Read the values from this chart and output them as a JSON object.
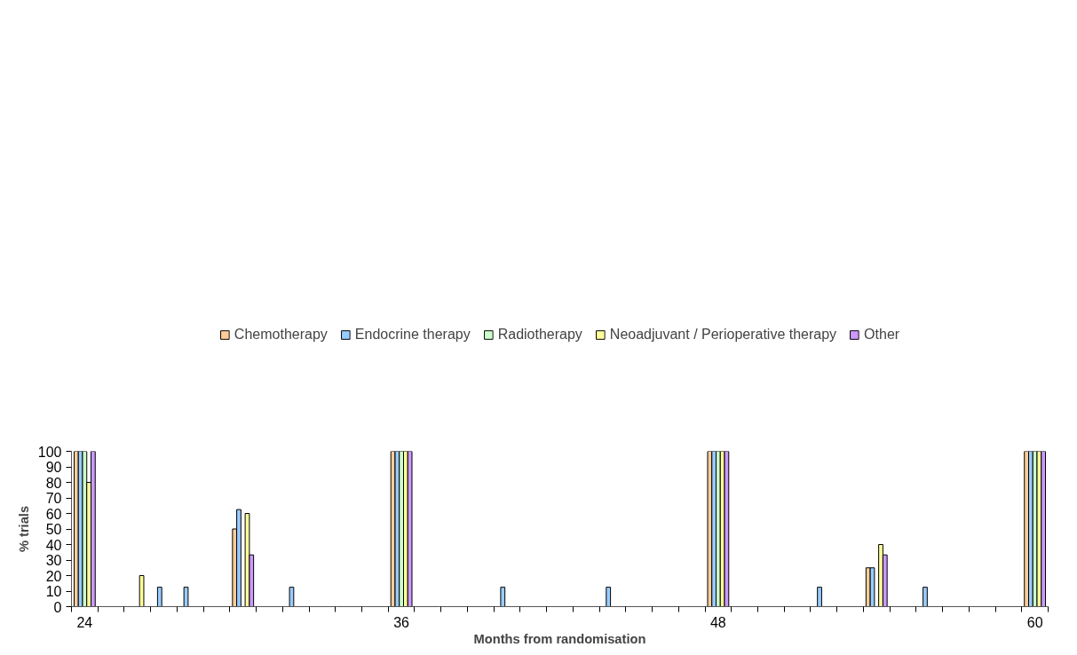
{
  "chart_data": {
    "type": "bar",
    "xlabel": "Months from randomisation",
    "ylabel": "% trials",
    "categories": [
      "24",
      null,
      null,
      null,
      null,
      null,
      null,
      null,
      null,
      null,
      null,
      null,
      "36",
      null,
      null,
      null,
      null,
      null,
      null,
      null,
      null,
      null,
      null,
      null,
      "48",
      null,
      null,
      null,
      null,
      null,
      null,
      null,
      null,
      null,
      null,
      null,
      "60"
    ],
    "series": [
      {
        "name": "Chemotherapy",
        "color": "#ffcc99",
        "values": [
          100,
          null,
          null,
          null,
          null,
          null,
          50,
          null,
          null,
          null,
          null,
          null,
          100,
          null,
          null,
          null,
          null,
          null,
          null,
          null,
          null,
          null,
          null,
          null,
          100,
          null,
          null,
          null,
          null,
          null,
          25,
          null,
          null,
          null,
          null,
          null,
          100
        ]
      },
      {
        "name": "Endocrine therapy",
        "color": "#99ccff",
        "values": [
          100,
          null,
          null,
          12.5,
          12.5,
          null,
          62.5,
          null,
          12.5,
          null,
          null,
          null,
          100,
          null,
          null,
          null,
          12.5,
          null,
          null,
          null,
          12.5,
          null,
          null,
          null,
          100,
          null,
          null,
          null,
          12.5,
          null,
          25,
          null,
          12.5,
          null,
          null,
          null,
          100
        ]
      },
      {
        "name": "Radiotherapy",
        "color": "#ccffcc",
        "values": [
          100,
          null,
          null,
          null,
          null,
          null,
          null,
          null,
          null,
          null,
          null,
          null,
          100,
          null,
          null,
          null,
          null,
          null,
          null,
          null,
          null,
          null,
          null,
          null,
          100,
          null,
          null,
          null,
          null,
          null,
          null,
          null,
          null,
          null,
          null,
          null,
          100
        ]
      },
      {
        "name": "Neoadjuvant / Perioperative therapy",
        "color": "#ffff99",
        "values": [
          80,
          null,
          20,
          null,
          null,
          null,
          60,
          null,
          null,
          null,
          null,
          null,
          100,
          null,
          null,
          null,
          null,
          null,
          null,
          null,
          null,
          null,
          null,
          null,
          100,
          null,
          null,
          null,
          null,
          null,
          40,
          null,
          null,
          null,
          null,
          null,
          100
        ]
      },
      {
        "name": "Other",
        "color": "#cc99ff",
        "values": [
          100,
          null,
          null,
          null,
          null,
          null,
          33.3,
          null,
          null,
          null,
          null,
          null,
          100,
          null,
          null,
          null,
          null,
          null,
          null,
          null,
          null,
          null,
          null,
          null,
          100,
          null,
          null,
          null,
          null,
          null,
          33.3,
          null,
          null,
          null,
          null,
          null,
          100
        ]
      }
    ],
    "ylim": [
      0,
      100
    ],
    "yticks": [
      0,
      10,
      20,
      30,
      40,
      50,
      60,
      70,
      80,
      90,
      100
    ],
    "grid": false,
    "legend": "top"
  }
}
